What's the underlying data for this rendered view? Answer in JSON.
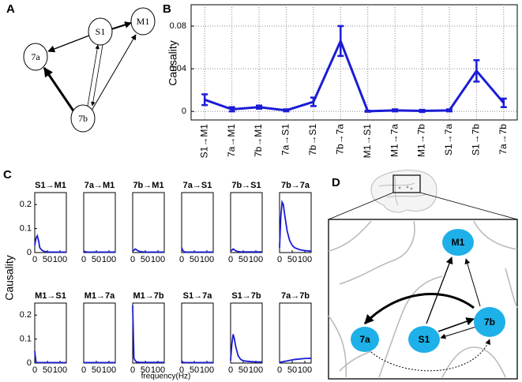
{
  "panels": {
    "a": "A",
    "b": "B",
    "c": "C",
    "d": "D"
  },
  "diagram_a": {
    "nodes": [
      "S1",
      "M1",
      "7a",
      "7b"
    ]
  },
  "diagram_d": {
    "nodes": [
      "M1",
      "7a",
      "S1",
      "7b"
    ]
  },
  "panel_c_axes": {
    "ylabel": "Causality",
    "xlabel": "frequency(Hz)"
  },
  "chart_data": [
    {
      "type": "errorline",
      "ylabel": "Causality",
      "categories": [
        "S1→M1",
        "7a→M1",
        "7b→M1",
        "7a→S1",
        "7b→S1",
        "7b→7a",
        "M1→S1",
        "M1→7a",
        "M1→7b",
        "S1→7a",
        "S1→7b",
        "7a→7b"
      ],
      "series": [
        {
          "color": "#1c1cd6",
          "values": [
            0.011,
            0.002,
            0.004,
            0.001,
            0.009,
            0.066,
            0.0002,
            0.001,
            0.0005,
            0.001,
            0.038,
            0.008
          ],
          "errors": [
            0.005,
            0.002,
            0.0015,
            0.001,
            0.004,
            0.014,
            0.0005,
            0.001,
            0.001,
            0.001,
            0.01,
            0.004
          ]
        }
      ],
      "ylim": [
        -0.008,
        0.1
      ],
      "yticks": [
        0,
        0.04,
        0.08
      ],
      "grid": true
    },
    {
      "type": "line",
      "title": "S1→M1",
      "x": [
        0,
        5,
        10,
        15,
        20,
        30,
        40,
        50,
        60,
        80,
        100,
        125
      ],
      "xlim": [
        0,
        125
      ],
      "xticks": [
        0,
        50,
        100
      ],
      "ylim": [
        0,
        0.25
      ],
      "yticks": [
        0,
        0.1,
        0.2
      ],
      "series": [
        {
          "color": "#1c1cd6",
          "values": [
            0.03,
            0.06,
            0.07,
            0.05,
            0.02,
            0.008,
            0.004,
            0.003,
            0.002,
            0.002,
            0.002,
            0.002
          ]
        }
      ]
    },
    {
      "type": "line",
      "title": "7a→M1",
      "x": [
        0,
        5,
        10,
        15,
        20,
        30,
        40,
        50,
        60,
        80,
        100,
        125
      ],
      "xlim": [
        0,
        125
      ],
      "xticks": [
        0,
        50,
        100
      ],
      "ylim": [
        0,
        0.25
      ],
      "series": [
        {
          "color": "#1c1cd6",
          "values": [
            0.005,
            0.004,
            0.003,
            0.002,
            0.002,
            0.002,
            0.002,
            0.002,
            0.002,
            0.002,
            0.002,
            0.002
          ]
        }
      ]
    },
    {
      "type": "line",
      "title": "7b→M1",
      "x": [
        0,
        5,
        10,
        15,
        20,
        30,
        40,
        50,
        60,
        80,
        100,
        125
      ],
      "xlim": [
        0,
        125
      ],
      "xticks": [
        0,
        50,
        100
      ],
      "ylim": [
        0,
        0.25
      ],
      "series": [
        {
          "color": "#1c1cd6",
          "values": [
            0.005,
            0.01,
            0.015,
            0.012,
            0.008,
            0.004,
            0.003,
            0.002,
            0.002,
            0.002,
            0.002,
            0.002
          ]
        }
      ]
    },
    {
      "type": "line",
      "title": "7a→S1",
      "x": [
        0,
        5,
        10,
        15,
        20,
        30,
        40,
        50,
        60,
        80,
        100,
        125
      ],
      "xlim": [
        0,
        125
      ],
      "xticks": [
        0,
        50,
        100
      ],
      "ylim": [
        0,
        0.25
      ],
      "series": [
        {
          "color": "#1c1cd6",
          "values": [
            0.02,
            0.008,
            0.004,
            0.002,
            0.002,
            0.002,
            0.002,
            0.002,
            0.002,
            0.002,
            0.002,
            0.002
          ]
        }
      ]
    },
    {
      "type": "line",
      "title": "7b→S1",
      "x": [
        0,
        5,
        10,
        15,
        20,
        30,
        40,
        50,
        60,
        80,
        100,
        125
      ],
      "xlim": [
        0,
        125
      ],
      "xticks": [
        0,
        50,
        100
      ],
      "ylim": [
        0,
        0.25
      ],
      "series": [
        {
          "color": "#1c1cd6",
          "values": [
            0.005,
            0.01,
            0.015,
            0.012,
            0.007,
            0.004,
            0.003,
            0.003,
            0.003,
            0.003,
            0.003,
            0.003
          ]
        }
      ]
    },
    {
      "type": "line",
      "title": "7b→7a",
      "x": [
        0,
        5,
        10,
        15,
        20,
        30,
        40,
        50,
        60,
        80,
        100,
        125
      ],
      "xlim": [
        0,
        125
      ],
      "xticks": [
        0,
        50,
        100
      ],
      "ylim": [
        0,
        0.25
      ],
      "series": [
        {
          "color": "#1c1cd6",
          "values": [
            0.02,
            0.15,
            0.21,
            0.2,
            0.16,
            0.09,
            0.05,
            0.03,
            0.02,
            0.012,
            0.008,
            0.006
          ]
        }
      ]
    },
    {
      "type": "line",
      "title": "M1→S1",
      "x": [
        0,
        5,
        10,
        15,
        20,
        30,
        40,
        50,
        60,
        80,
        100,
        125
      ],
      "xlim": [
        0,
        125
      ],
      "xticks": [
        0,
        50,
        100
      ],
      "ylim": [
        0,
        0.25
      ],
      "yticks": [
        0,
        0.1,
        0.2
      ],
      "series": [
        {
          "color": "#1c1cd6",
          "values": [
            0.05,
            0.003,
            0.002,
            0.002,
            0.002,
            0.002,
            0.002,
            0.002,
            0.002,
            0.002,
            0.002,
            0.002
          ]
        }
      ]
    },
    {
      "type": "line",
      "title": "M1→7a",
      "x": [
        0,
        5,
        10,
        15,
        20,
        30,
        40,
        50,
        60,
        80,
        100,
        125
      ],
      "xlim": [
        0,
        125
      ],
      "xticks": [
        0,
        50,
        100
      ],
      "ylim": [
        0,
        0.25
      ],
      "series": [
        {
          "color": "#1c1cd6",
          "values": [
            0.002,
            0.002,
            0.002,
            0.002,
            0.002,
            0.002,
            0.002,
            0.002,
            0.002,
            0.002,
            0.002,
            0.002
          ]
        }
      ]
    },
    {
      "type": "line",
      "title": "M1→7b",
      "x": [
        0,
        5,
        10,
        15,
        20,
        30,
        40,
        50,
        60,
        80,
        100,
        125
      ],
      "xlim": [
        0,
        125
      ],
      "xticks": [
        0,
        50,
        100
      ],
      "ylim": [
        0,
        0.25
      ],
      "series": [
        {
          "color": "#1c1cd6",
          "values": [
            0.24,
            0.02,
            0.01,
            0.005,
            0.004,
            0.003,
            0.003,
            0.003,
            0.003,
            0.003,
            0.003,
            0.003
          ]
        }
      ]
    },
    {
      "type": "line",
      "title": "S1→7a",
      "x": [
        0,
        5,
        10,
        15,
        20,
        30,
        40,
        50,
        60,
        80,
        100,
        125
      ],
      "xlim": [
        0,
        125
      ],
      "xticks": [
        0,
        50,
        100
      ],
      "ylim": [
        0,
        0.25
      ],
      "series": [
        {
          "color": "#1c1cd6",
          "values": [
            0.01,
            0.003,
            0.002,
            0.002,
            0.002,
            0.002,
            0.002,
            0.002,
            0.002,
            0.002,
            0.002,
            0.002
          ]
        }
      ]
    },
    {
      "type": "line",
      "title": "S1→7b",
      "x": [
        0,
        5,
        10,
        15,
        20,
        30,
        40,
        50,
        60,
        80,
        100,
        125
      ],
      "xlim": [
        0,
        125
      ],
      "xticks": [
        0,
        50,
        100
      ],
      "ylim": [
        0,
        0.25
      ],
      "series": [
        {
          "color": "#1c1cd6",
          "values": [
            0.01,
            0.08,
            0.12,
            0.1,
            0.07,
            0.03,
            0.015,
            0.01,
            0.008,
            0.006,
            0.005,
            0.005
          ]
        }
      ]
    },
    {
      "type": "line",
      "title": "7a→7b",
      "x": [
        0,
        5,
        10,
        15,
        20,
        30,
        40,
        50,
        60,
        80,
        100,
        125
      ],
      "xlim": [
        0,
        125
      ],
      "xticks": [
        0,
        50,
        100
      ],
      "ylim": [
        0,
        0.25
      ],
      "series": [
        {
          "color": "#1c1cd6",
          "values": [
            0.002,
            0.004,
            0.005,
            0.006,
            0.007,
            0.009,
            0.011,
            0.013,
            0.015,
            0.017,
            0.019,
            0.02
          ]
        }
      ]
    }
  ]
}
